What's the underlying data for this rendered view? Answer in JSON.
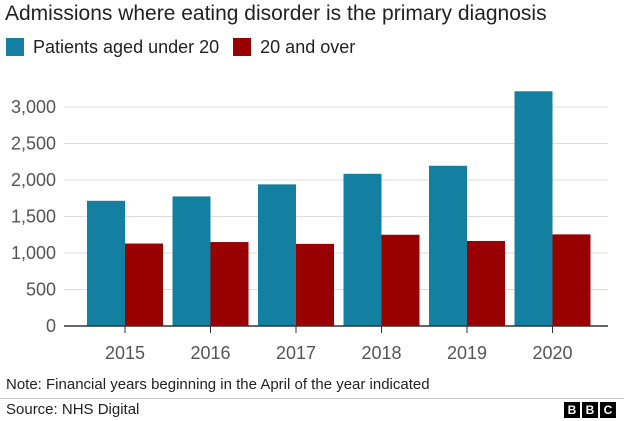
{
  "chart_data": {
    "type": "bar",
    "title": "Admissions where eating disorder is the primary diagnosis",
    "categories": [
      "2015",
      "2016",
      "2017",
      "2018",
      "2019",
      "2020"
    ],
    "series": [
      {
        "name": "Patients aged under 20",
        "color": "#1380A1",
        "values": [
          1715,
          1775,
          1940,
          2085,
          2195,
          3215
        ]
      },
      {
        "name": "20 and over",
        "color": "#990000",
        "values": [
          1130,
          1150,
          1125,
          1250,
          1165,
          1255
        ]
      }
    ],
    "ylim": [
      0,
      3000
    ],
    "yticks": [
      0,
      500,
      1000,
      1500,
      2000,
      2500,
      3000
    ],
    "ytick_labels": [
      "0",
      "500",
      "1,000",
      "1,500",
      "2,000",
      "2,500",
      "3,000"
    ],
    "grid": true,
    "legend_position": "top-left"
  },
  "note": "Note: Financial years beginning in the April of the year indicated",
  "source": "Source: NHS Digital",
  "logo": {
    "letters": [
      "B",
      "B",
      "C"
    ]
  }
}
